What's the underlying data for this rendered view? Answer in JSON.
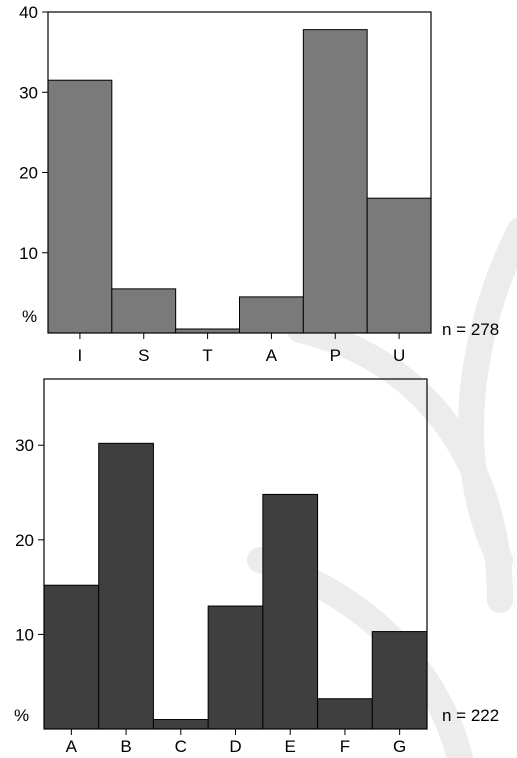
{
  "chart_data": [
    {
      "type": "bar",
      "categories": [
        "I",
        "S",
        "T",
        "A",
        "P",
        "U"
      ],
      "values": [
        31.5,
        5.5,
        0.5,
        4.5,
        37.8,
        16.8
      ],
      "ylim": [
        0,
        40
      ],
      "yticks": [
        "10",
        "20",
        "30",
        "40"
      ],
      "ylabel": "%",
      "annotation": "n = 278",
      "bar_color": "#7a7a7a",
      "grid": false
    },
    {
      "type": "bar",
      "categories": [
        "A",
        "B",
        "C",
        "D",
        "E",
        "F",
        "G"
      ],
      "values": [
        15.2,
        30.2,
        1.0,
        13.0,
        24.8,
        3.2,
        10.3
      ],
      "ylim": [
        0,
        37
      ],
      "yticks": [
        "10",
        "20",
        "30"
      ],
      "ylabel": "%",
      "annotation": "n = 222",
      "bar_color": "#3f3f3f",
      "grid": false
    }
  ]
}
